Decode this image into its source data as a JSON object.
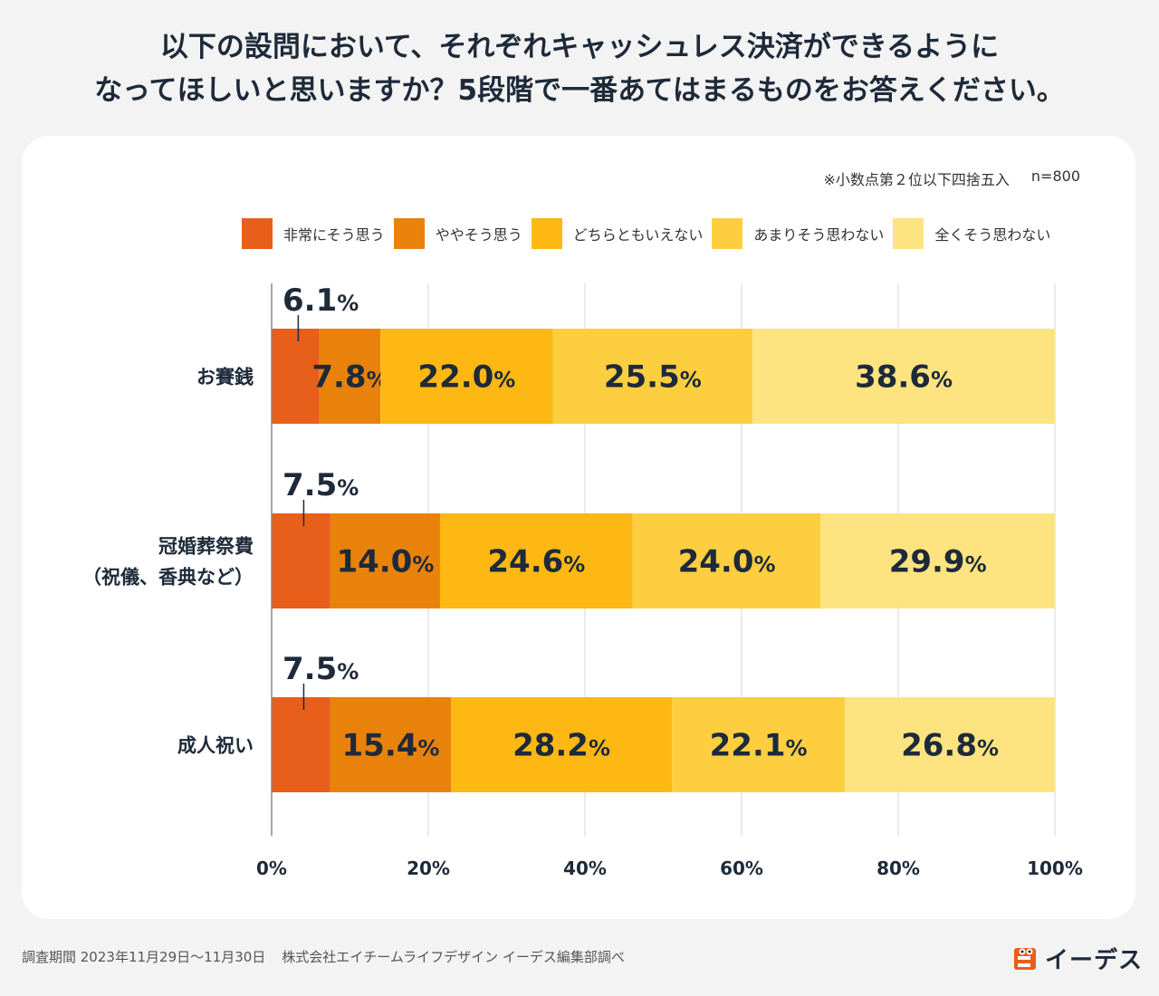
{
  "title": {
    "line1": "以下の設問において、それぞれキャッシュレス決済ができるように",
    "line2": "なってほしいと思いますか？5段階で一番あてはまるものをお答えください。"
  },
  "note": {
    "rounding": "※小数点第２位以下四捨五入",
    "n": "n=800"
  },
  "colors": {
    "background": "#f3f3f3",
    "card": "#ffffff",
    "text": "#1e2a3a",
    "grid": "#d6d6d6",
    "axis": "#888888"
  },
  "chart_data": {
    "type": "bar",
    "orientation": "horizontal-stacked",
    "xlim": [
      0,
      100
    ],
    "x_ticks": [
      "0%",
      "20%",
      "40%",
      "60%",
      "80%",
      "100%"
    ],
    "x_tick_values": [
      0,
      20,
      40,
      60,
      80,
      100
    ],
    "categories": [
      "お賽銭",
      "冠婚葬祭費\n（祝儀、香典など）",
      "成人祝い"
    ],
    "series": [
      {
        "name": "非常にそう思う",
        "color": "#e85e1b",
        "values": [
          6.1,
          7.5,
          7.5
        ],
        "labels": [
          "6.1",
          "7.5",
          "7.5"
        ]
      },
      {
        "name": "ややそう思う",
        "color": "#e8820b",
        "values": [
          7.8,
          14.0,
          15.4
        ],
        "labels": [
          "7.8",
          "14.0",
          "15.4"
        ]
      },
      {
        "name": "どちらともいえない",
        "color": "#fdb813",
        "values": [
          22.0,
          24.6,
          28.2
        ],
        "labels": [
          "22.0",
          "24.6",
          "28.2"
        ]
      },
      {
        "name": "あまりそう思わない",
        "color": "#fdcf40",
        "values": [
          25.5,
          24.0,
          22.1
        ],
        "labels": [
          "25.5",
          "24.0",
          "22.1"
        ]
      },
      {
        "name": "全くそう思わない",
        "color": "#fee480",
        "values": [
          38.6,
          29.9,
          26.8
        ],
        "labels": [
          "38.6",
          "29.9",
          "26.8"
        ]
      }
    ],
    "percent_sign": "%"
  },
  "footer": {
    "period": "調査期間 2023年11月29日〜11月30日",
    "source": "株式会社エイチームライフデザイン イーデス編集部調べ"
  },
  "brand": {
    "name": "イーデス",
    "logo_icon": "ides-logo-icon",
    "logo_color": "#e85e1b"
  }
}
